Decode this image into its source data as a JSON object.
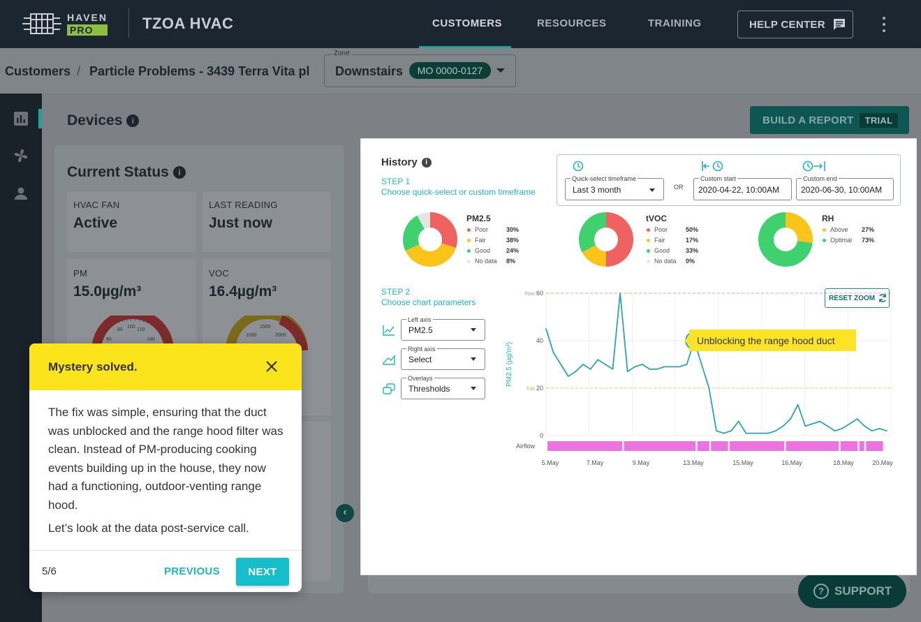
{
  "header": {
    "logo_top": "HAVEN",
    "logo_bottom": "PRO",
    "company": "TZOA HVAC",
    "nav": [
      "CUSTOMERS",
      "RESOURCES",
      "TRAINING"
    ],
    "help_label": "HELP CENTER"
  },
  "breadcrumb": {
    "root": "Customers",
    "separator": "/",
    "current": "Particle Problems - 3439 Terra Vita pl"
  },
  "zone": {
    "label": "Zone",
    "value": "Downstairs",
    "device_id": "MO 0000-0127"
  },
  "devices": {
    "title": "Devices",
    "report_label": "BUILD A REPORT",
    "trial_label": "TRIAL"
  },
  "status": {
    "title": "Current Status",
    "tiles": [
      {
        "label": "HVAC FAN",
        "value": "Active"
      },
      {
        "label": "LAST READING",
        "value": "Just now"
      },
      {
        "label": "PM",
        "value": "15.0µg/m³"
      },
      {
        "label": "VOC",
        "value": "16.4µg/m³"
      }
    ],
    "gauge_pm_ticks": [
      "60",
      "80",
      "100",
      "120",
      "140"
    ],
    "gauge_voc_ticks": [
      "1000",
      "1500",
      "2000"
    ]
  },
  "history": {
    "title": "History",
    "step1_title": "STEP 1",
    "step1_text": "Choose quick-select or custom timeframe",
    "quick_label": "Quick-select timeframe",
    "quick_value": "Last 3 month",
    "or": "OR",
    "start_label": "Custom start",
    "start_value": "2020-04-22, 10:00AM",
    "end_label": "Custom end",
    "end_value": "2020-06-30, 10:00AM",
    "step2_title": "STEP 2",
    "step2_text": "Choose chart parameters",
    "params": [
      {
        "label": "Left axis",
        "value": "PM2.5"
      },
      {
        "label": "Right axis",
        "value": "Select"
      },
      {
        "label": "Overlays",
        "value": "Thresholds"
      }
    ],
    "reset_label": "RESET ZOOM",
    "annotation": "Unblocking the range hood duct"
  },
  "donuts": [
    {
      "title": "PM2.5",
      "items": [
        {
          "label": "Poor",
          "pct": "30%",
          "color": "#f0625f"
        },
        {
          "label": "Fair",
          "pct": "38%",
          "color": "#fcc419"
        },
        {
          "label": "Good",
          "pct": "24%",
          "color": "#3fd16e"
        },
        {
          "label": "No data",
          "pct": "8%",
          "color": "#e5e5e5"
        }
      ]
    },
    {
      "title": "tVOC",
      "items": [
        {
          "label": "Poor",
          "pct": "50%",
          "color": "#f0625f"
        },
        {
          "label": "Fair",
          "pct": "17%",
          "color": "#fcc419"
        },
        {
          "label": "Good",
          "pct": "33%",
          "color": "#3fd16e"
        },
        {
          "label": "No data",
          "pct": "0%",
          "color": "#e5e5e5"
        }
      ]
    },
    {
      "title": "RH",
      "items": [
        {
          "label": "Above",
          "pct": "27%",
          "color": "#fcc419"
        },
        {
          "label": "Optimal",
          "pct": "73%",
          "color": "#3fd16e"
        }
      ]
    }
  ],
  "chart_data": {
    "type": "line",
    "ylabel": "PM2.5 (µg/m³)",
    "ylim": [
      0,
      60
    ],
    "yticks": [
      0,
      20,
      40,
      60
    ],
    "thresholds": [
      {
        "label": "Poor",
        "value": 60
      },
      {
        "label": "Fair",
        "value": 20
      }
    ],
    "x_tick_labels": [
      "5.May",
      "7.May",
      "9.May",
      "13.May",
      "15.May",
      "16.May",
      "18.May",
      "20.May"
    ],
    "overlay_label": "Airflow",
    "series": [
      {
        "values": [
          45,
          35,
          30,
          25,
          27,
          30,
          28,
          32,
          30,
          28,
          60,
          27,
          29,
          30,
          28,
          28,
          29,
          29,
          29,
          30,
          40,
          30,
          20,
          2,
          1,
          2,
          6,
          1,
          1,
          1,
          1,
          2,
          4,
          7,
          13,
          4,
          5,
          6,
          4,
          2,
          3,
          5,
          7,
          4,
          2,
          3,
          2
        ]
      }
    ]
  },
  "tour": {
    "title": "Mystery solved.",
    "body": "The fix was simple, ensuring that the duct was unblocked and the range hood filter was clean. Instead of PM-producing cooking events building up in the house, they now had a functioning, outdoor-venting range hood.",
    "body2": "Let’s look at the data post-service call.",
    "step": "5/6",
    "prev_label": "PREVIOUS",
    "next_label": "NEXT"
  },
  "support_label": "SUPPORT",
  "colors": {
    "teal": "#15bec8",
    "yellow": "#fbe41c",
    "line": "#2aa6ad",
    "airflow": "#ec74e0"
  }
}
